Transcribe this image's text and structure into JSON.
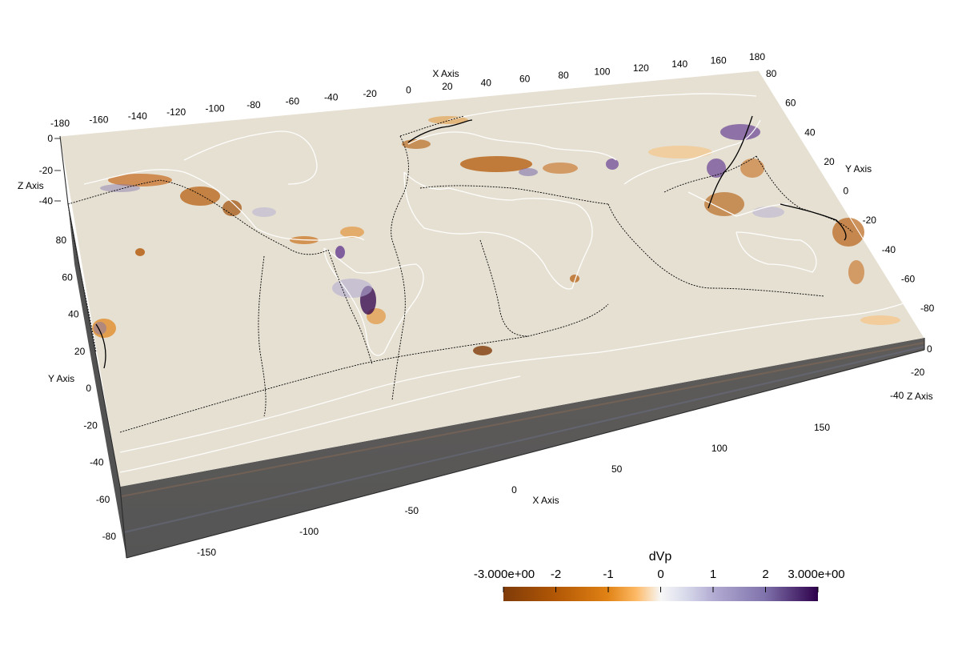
{
  "axes": {
    "top_x": {
      "title": "X Axis",
      "ticks": [
        "-180",
        "-160",
        "-140",
        "-120",
        "-100",
        "-80",
        "-60",
        "-40",
        "-20",
        "0",
        "20",
        "40",
        "60",
        "80",
        "100",
        "120",
        "140",
        "160",
        "180"
      ]
    },
    "right_y": {
      "title": "Y Axis",
      "ticks": [
        "80",
        "60",
        "40",
        "20",
        "0",
        "-20",
        "-40",
        "-60",
        "-80"
      ]
    },
    "right_z": {
      "title": "Z Axis",
      "ticks": [
        "0",
        "-20",
        "-40"
      ]
    },
    "left_z": {
      "title": "Z Axis",
      "ticks": [
        "0",
        "-20",
        "-40"
      ]
    },
    "left_y": {
      "title": "Y Axis",
      "ticks": [
        "80",
        "60",
        "40",
        "20",
        "0",
        "-20",
        "-40",
        "-60",
        "-80"
      ]
    },
    "bottom_x": {
      "title": "X Axis",
      "ticks": [
        "-150",
        "-100",
        "-50",
        "0",
        "50",
        "100",
        "150"
      ]
    }
  },
  "colorbar": {
    "title": "dVp",
    "ticks": [
      "-3.000e+00",
      "-2",
      "-1",
      "0",
      "1",
      "2",
      "3.000e+00"
    ],
    "colormap": "PuOr",
    "range": [
      -3,
      3
    ],
    "colors": [
      "#7f3b08",
      "#e08214",
      "#fdb863",
      "#f7f7f7",
      "#b2abd2",
      "#8073ac",
      "#2d004b"
    ]
  },
  "scene": {
    "surface_color": "#e6e0d2",
    "side_color": "#595959",
    "coastline_color": "#ffffff",
    "plate_boundary_color": "#000000"
  }
}
